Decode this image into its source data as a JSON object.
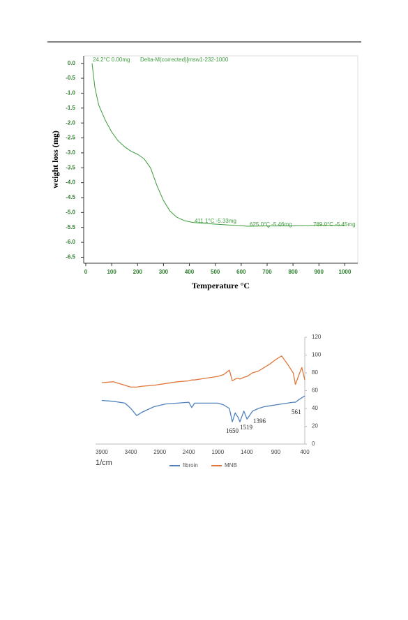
{
  "chart_data": [
    {
      "type": "line",
      "annotations": [
        "24.2°C  0.00mg",
        "Delta-M(corrected)[msw1-232-1000",
        "411.1°C -5.33mg",
        "625.0°C -5.46mg",
        "789.0°C -5.45mg"
      ],
      "xlabel": "Temperature °C",
      "ylabel": "weight loss (mg)",
      "x": [
        24.2,
        35,
        50,
        75,
        100,
        125,
        150,
        175,
        200,
        225,
        250,
        275,
        300,
        325,
        350,
        380,
        411.1,
        450,
        500,
        550,
        625,
        700,
        705,
        710,
        789,
        850,
        900,
        950,
        1000
      ],
      "values": [
        0.0,
        -0.8,
        -1.4,
        -1.9,
        -2.3,
        -2.6,
        -2.8,
        -2.95,
        -3.05,
        -3.2,
        -3.5,
        -4.1,
        -4.6,
        -4.95,
        -5.15,
        -5.27,
        -5.33,
        -5.36,
        -5.39,
        -5.42,
        -5.46,
        -5.45,
        -5.5,
        -5.45,
        -5.45,
        -5.44,
        -5.43,
        -5.43,
        -5.44
      ],
      "color": "#3c9b3c",
      "xlim": [
        -8,
        1050
      ],
      "ylim": [
        -6.7,
        0.25
      ],
      "xticks": [
        0,
        100,
        200,
        300,
        400,
        500,
        600,
        700,
        800,
        900,
        1000
      ],
      "yticks": [
        {
          "value": 0,
          "label": "0.0"
        },
        -0.5,
        {
          "value": -1,
          "label": "-1.0"
        },
        -1.5,
        {
          "value": -2,
          "label": "-2.0"
        },
        -2.5,
        {
          "value": -3,
          "label": "-3.0"
        },
        -3.5,
        {
          "value": -4,
          "label": "-4.0"
        },
        -4.5,
        {
          "value": -5,
          "label": "-5.0"
        },
        -5.5,
        {
          "value": -6,
          "label": "-6.0"
        },
        -6.5
      ]
    },
    {
      "type": "line",
      "annotations": [
        "1650",
        "1519",
        "1396",
        "561"
      ],
      "xlabel": "1/cm",
      "x": [
        3900,
        3700,
        3500,
        3400,
        3300,
        3200,
        3000,
        2800,
        2600,
        2400,
        2350,
        2300,
        2100,
        1900,
        1800,
        1700,
        1650,
        1600,
        1550,
        1519,
        1450,
        1396,
        1300,
        1200,
        1100,
        1000,
        900,
        800,
        700,
        600,
        561,
        500,
        450,
        400
      ],
      "series": [
        {
          "name": "fibroin",
          "color": "#4f81bd",
          "values": [
            49,
            48,
            46,
            40,
            32,
            36,
            42,
            45,
            46,
            47,
            41,
            46,
            46,
            46,
            44,
            40,
            25,
            35,
            30,
            25,
            37,
            28,
            37,
            40,
            42,
            43,
            44,
            45,
            46,
            47,
            47,
            50,
            52,
            54
          ]
        },
        {
          "name": "MNB",
          "color": "#e0773a",
          "values": [
            69,
            70,
            66,
            64,
            64,
            65,
            66,
            68,
            70,
            71,
            72,
            72,
            74,
            76,
            78,
            83,
            71,
            73,
            74,
            73,
            75,
            76,
            80,
            82,
            86,
            90,
            95,
            99,
            90,
            80,
            67,
            78,
            86,
            72
          ]
        }
      ],
      "xlim": [
        4008,
        400
      ],
      "ylim": [
        0,
        120
      ],
      "xticks": [
        3900,
        3400,
        2900,
        2400,
        1900,
        1400,
        900,
        400
      ],
      "yticks": [
        0,
        20,
        40,
        60,
        80,
        100,
        120
      ]
    }
  ]
}
